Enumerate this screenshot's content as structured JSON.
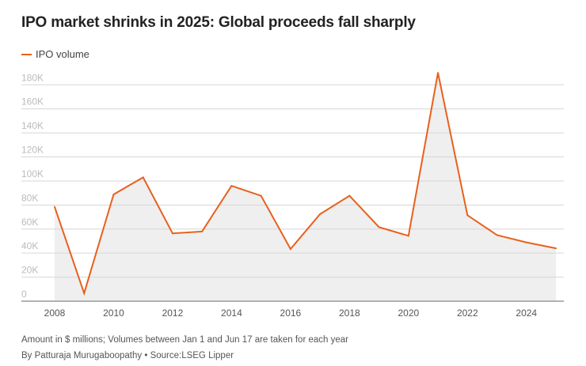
{
  "chart_data": {
    "type": "area",
    "title": "IPO market shrinks in 2025: Global proceeds fall sharply",
    "legend": [
      {
        "name": "IPO volume",
        "color": "#e8601c"
      }
    ],
    "legend_position": "top-left",
    "xlabel": "",
    "ylabel": "",
    "x": [
      2008,
      2009,
      2010,
      2011,
      2012,
      2013,
      2014,
      2015,
      2016,
      2017,
      2018,
      2019,
      2020,
      2021,
      2022,
      2023,
      2024,
      2025
    ],
    "series": [
      {
        "name": "IPO volume",
        "values": [
          78500,
          6600,
          88800,
          103000,
          56400,
          58000,
          96000,
          87700,
          43400,
          72400,
          87700,
          61600,
          54400,
          190000,
          71500,
          55000,
          48900,
          44000
        ]
      }
    ],
    "ylim": [
      0,
      180000
    ],
    "yticks": [
      0,
      20000,
      40000,
      60000,
      80000,
      100000,
      120000,
      140000,
      160000,
      180000
    ],
    "ytick_labels": [
      "0",
      "20K",
      "40K",
      "60K",
      "80K",
      "100K",
      "120K",
      "140K",
      "160K",
      "180K"
    ],
    "xticks": [
      2008,
      2010,
      2012,
      2014,
      2016,
      2018,
      2020,
      2022,
      2024
    ],
    "xtick_labels": [
      "2008",
      "2010",
      "2012",
      "2014",
      "2016",
      "2018",
      "2020",
      "2022",
      "2024"
    ],
    "grid": true,
    "line_color": "#e8601c",
    "fill_color": "#efefef"
  },
  "footer": {
    "note": "Amount in $ millions; Volumes between Jan 1 and Jun 17 are taken for each year",
    "byline": "By Patturaja Murugaboopathy  • Source:LSEG Lipper"
  }
}
